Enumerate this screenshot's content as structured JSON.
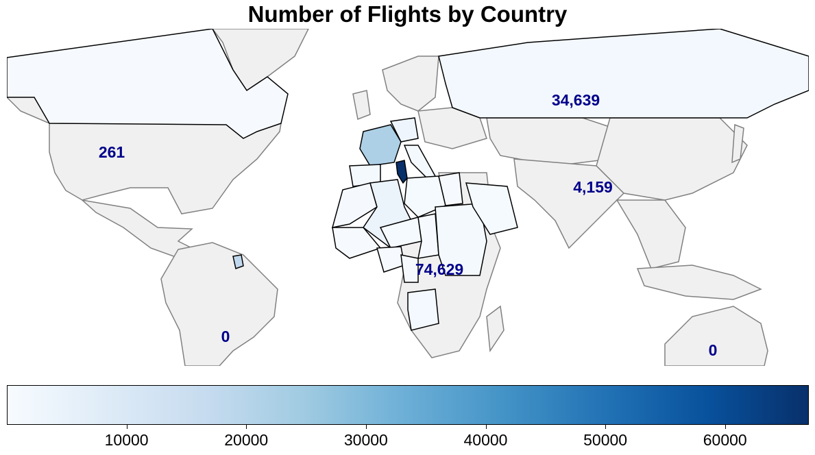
{
  "title": "Number of Flights by Country",
  "colormap": {
    "name": "Blues",
    "min": 0,
    "max": 67000,
    "stops": [
      "#f7fbff",
      "#deebf7",
      "#c6dbef",
      "#9ecae1",
      "#6baed6",
      "#4292c6",
      "#2171b5",
      "#08519c",
      "#08306b"
    ],
    "ticks": [
      10000,
      20000,
      30000,
      40000,
      50000,
      60000
    ],
    "tick_labels": [
      "10000",
      "20000",
      "30000",
      "40000",
      "50000",
      "60000"
    ]
  },
  "colors": {
    "no_data_fill": "#f0f0f0",
    "no_data_border": "#808080",
    "data_border": "#000000",
    "label_color": "#00008b"
  },
  "region_labels": [
    {
      "id": "north-america",
      "text": "261"
    },
    {
      "id": "russia",
      "text": "34,639"
    },
    {
      "id": "south-asia",
      "text": "4,159"
    },
    {
      "id": "africa",
      "text": "74,629"
    },
    {
      "id": "south-america",
      "text": "0"
    },
    {
      "id": "oceania",
      "text": "0"
    }
  ],
  "country_values": {
    "tunisia": 67000,
    "france": 22000,
    "french-guiana": 18000,
    "algeria": 4000,
    "germany": 3000,
    "russia": 1500,
    "canada": 300,
    "angola": 1200,
    "sudan": 1000,
    "morocco": 800,
    "niger": 600,
    "mali": 500,
    "chad": 400,
    "saudi-arabia": 700,
    "spain": 900,
    "italy": 1100,
    "libya": 600,
    "egypt": 500,
    "cameroon": 300,
    "nigeria": 400
  }
}
